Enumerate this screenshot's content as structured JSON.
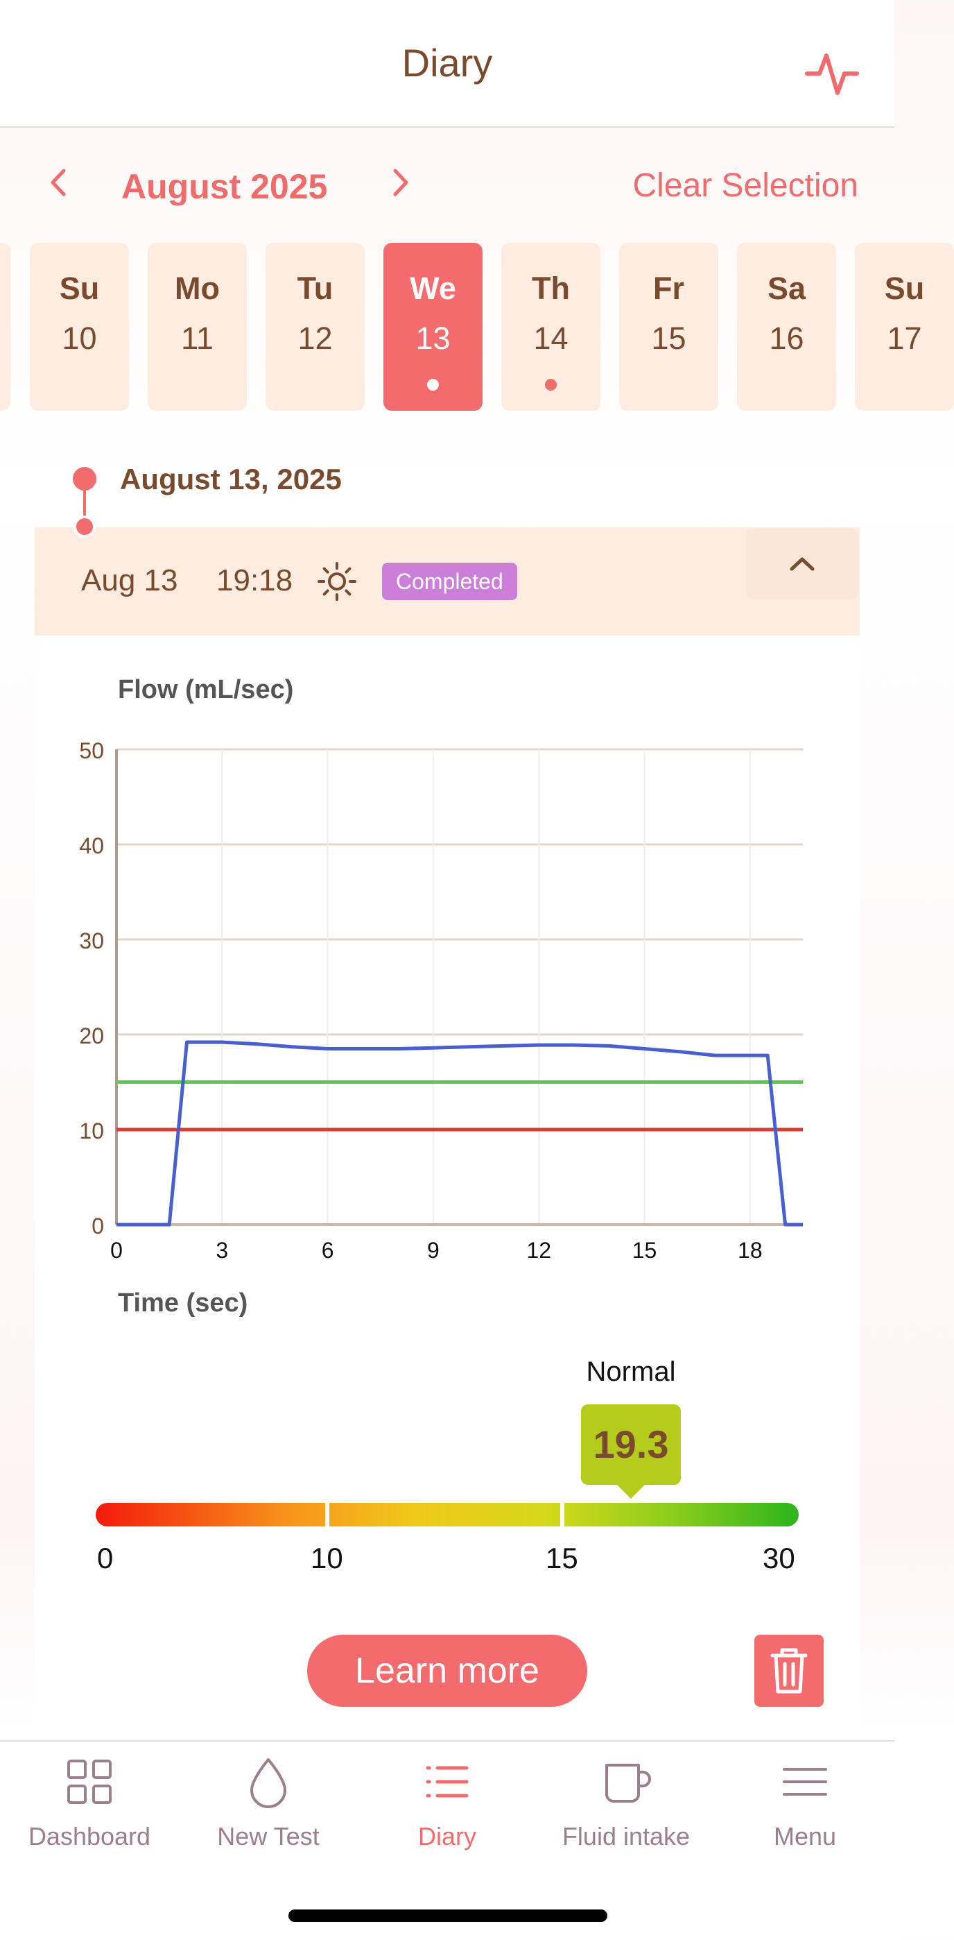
{
  "header": {
    "title": "Diary",
    "activity_icon": "activity-pulse-icon"
  },
  "calendar": {
    "month": "August 2025",
    "clear_selection": "Clear Selection",
    "prev_icon": "chevron-left-icon",
    "next_icon": "chevron-right-icon",
    "days": [
      {
        "name": "Su",
        "num": "10",
        "selected": false,
        "has_entry": false
      },
      {
        "name": "Mo",
        "num": "11",
        "selected": false,
        "has_entry": false
      },
      {
        "name": "Tu",
        "num": "12",
        "selected": false,
        "has_entry": false
      },
      {
        "name": "We",
        "num": "13",
        "selected": true,
        "has_entry": true
      },
      {
        "name": "Th",
        "num": "14",
        "selected": false,
        "has_entry": true
      },
      {
        "name": "Fr",
        "num": "15",
        "selected": false,
        "has_entry": false
      },
      {
        "name": "Sa",
        "num": "16",
        "selected": false,
        "has_entry": false
      },
      {
        "name": "Su",
        "num": "17",
        "selected": false,
        "has_entry": false
      }
    ]
  },
  "timeline": {
    "date_heading": "August 13, 2025"
  },
  "entry": {
    "date": "Aug 13",
    "time": "19:18",
    "time_of_day_icon": "sun-icon",
    "status": "Completed",
    "collapse_icon": "chevron-up-icon"
  },
  "chart_data": {
    "type": "line",
    "ylabel": "Flow (mL/sec)",
    "xlabel": "Time (sec)",
    "xlim": [
      0,
      19.5
    ],
    "ylim": [
      0,
      50
    ],
    "x_ticks": [
      0,
      3,
      6,
      9,
      12,
      15,
      18
    ],
    "y_ticks": [
      0,
      10,
      20,
      30,
      40,
      50
    ],
    "grid": true,
    "series": [
      {
        "color": "#4a5fcf",
        "x": [
          0,
          1.5,
          2,
          3,
          4,
          5,
          6,
          7,
          8,
          9,
          10,
          11,
          12,
          13,
          14,
          15,
          16,
          17,
          18,
          18.5,
          19,
          19.5
        ],
        "y": [
          0,
          0,
          19.2,
          19.2,
          19.0,
          18.7,
          18.5,
          18.5,
          18.5,
          18.6,
          18.7,
          18.8,
          18.9,
          18.9,
          18.8,
          18.5,
          18.2,
          17.8,
          17.8,
          17.8,
          0,
          0
        ]
      },
      {
        "color": "#52d142",
        "x": [
          0,
          19.5
        ],
        "y": [
          15,
          15
        ]
      },
      {
        "color": "#d63c35",
        "x": [
          0,
          19.5
        ],
        "y": [
          10,
          10
        ]
      }
    ]
  },
  "gauge": {
    "status": "Normal",
    "value": "19.3",
    "value_number": 19.3,
    "ticks": [
      "0",
      "10",
      "15",
      "30"
    ],
    "tip_color": "#b5cc1c"
  },
  "actions": {
    "learn_more": "Learn more",
    "delete_icon": "trash-icon"
  },
  "tabbar": {
    "items": [
      {
        "label": "Dashboard",
        "icon": "grid-icon",
        "active": false
      },
      {
        "label": "New Test",
        "icon": "droplet-icon",
        "active": false
      },
      {
        "label": "Diary",
        "icon": "list-icon",
        "active": true
      },
      {
        "label": "Fluid intake",
        "icon": "cup-icon",
        "active": false
      },
      {
        "label": "Menu",
        "icon": "menu-icon",
        "active": false
      }
    ]
  },
  "colors": {
    "accent": "#f46b6e",
    "brown": "#7a4a2e",
    "badge": "#cc7fd8",
    "day_bg": "#fdecdf"
  }
}
